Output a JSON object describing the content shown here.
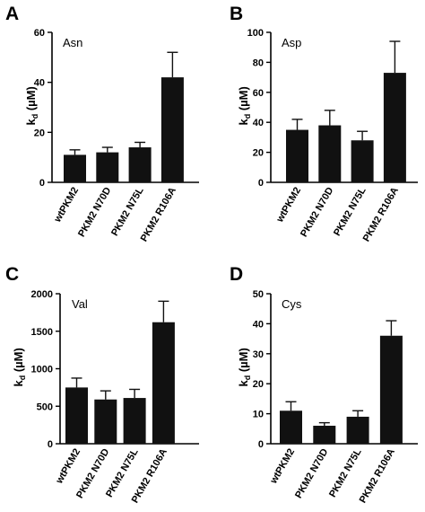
{
  "chart_data": [
    {
      "type": "bar",
      "panel": "A",
      "annotation": "Asn",
      "ylabel": {
        "main": "k",
        "sub": "d",
        "unit": " (µM)"
      },
      "ylim": [
        0,
        60
      ],
      "yticks": [
        0,
        20,
        40,
        60
      ],
      "categories": [
        "wtPKM2",
        "PKM2 N70D",
        "PKM2 N75L",
        "PKM2 R106A"
      ],
      "values": [
        11,
        12,
        14,
        42
      ],
      "errors": [
        2,
        2,
        2,
        10
      ]
    },
    {
      "type": "bar",
      "panel": "B",
      "annotation": "Asp",
      "ylabel": {
        "main": "k",
        "sub": "d",
        "unit": " (µM)"
      },
      "ylim": [
        0,
        100
      ],
      "yticks": [
        0,
        20,
        40,
        60,
        80,
        100
      ],
      "categories": [
        "wtPKM2",
        "PKM2 N70D",
        "PKM2 N75L",
        "PKM2 R106A"
      ],
      "values": [
        35,
        38,
        28,
        73
      ],
      "errors": [
        7,
        10,
        6,
        21
      ]
    },
    {
      "type": "bar",
      "panel": "C",
      "annotation": "Val",
      "ylabel": {
        "main": "k",
        "sub": "d",
        "unit": " (µM)"
      },
      "ylim": [
        0,
        2000
      ],
      "yticks": [
        0,
        500,
        1000,
        1500,
        2000
      ],
      "categories": [
        "wtPKM2",
        "PKM2 N70D",
        "PKM2 N75L",
        "PKM2 R106A"
      ],
      "values": [
        750,
        590,
        610,
        1620
      ],
      "errors": [
        125,
        115,
        115,
        280
      ]
    },
    {
      "type": "bar",
      "panel": "D",
      "annotation": "Cys",
      "ylabel": {
        "main": "k",
        "sub": "d",
        "unit": " (µM)"
      },
      "ylim": [
        0,
        50
      ],
      "yticks": [
        0,
        10,
        20,
        30,
        40,
        50
      ],
      "categories": [
        "wtPKM2",
        "PKM2 N70D",
        "PKM2 N75L",
        "PKM2 R106A"
      ],
      "values": [
        11,
        6,
        9,
        36
      ],
      "errors": [
        3,
        1,
        2,
        5
      ]
    }
  ],
  "colors": {
    "bar": "#111111",
    "axis": "#000000"
  }
}
